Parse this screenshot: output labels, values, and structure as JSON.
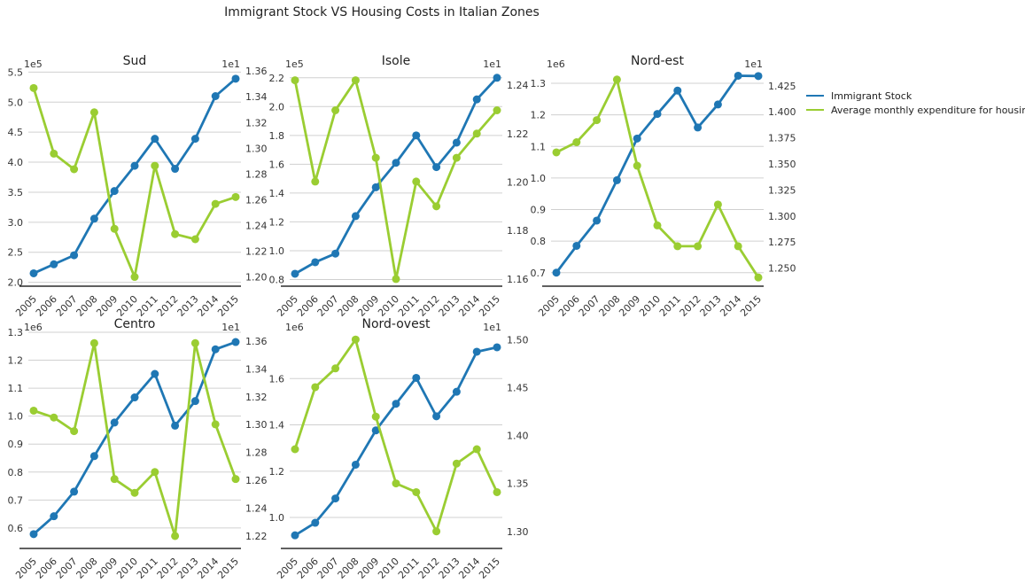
{
  "title": "Immigrant Stock VS Housing Costs in Italian Zones",
  "colors": {
    "immigrant": "#1f77b4",
    "housing": "#9acd32",
    "grid": "#d0d0d0",
    "axis": "#000000"
  },
  "legend": {
    "placement": "right",
    "items": [
      {
        "label": "Immigrant Stock",
        "color": "#1f77b4"
      },
      {
        "label": "Average monthly expenditure for housing",
        "color": "#9acd32"
      }
    ]
  },
  "chart_data": [
    {
      "type": "line",
      "title": "Sud",
      "categories": [
        "2005",
        "2006",
        "2007",
        "2008",
        "2009",
        "2010",
        "2011",
        "2012",
        "2013",
        "2014",
        "2015"
      ],
      "left_multiplier": "1e5",
      "right_multiplier": "1e1",
      "left_ylim": [
        1.95,
        5.55
      ],
      "right_ylim": [
        1.1935,
        1.3615
      ],
      "left_ticks": [
        "2.0",
        "2.5",
        "3.0",
        "3.5",
        "4.0",
        "4.5",
        "5.0",
        "5.5"
      ],
      "right_ticks": [
        "1.20",
        "1.22",
        "1.24",
        "1.26",
        "1.28",
        "1.30",
        "1.32",
        "1.34",
        "1.36"
      ],
      "series": [
        {
          "name": "Immigrant Stock",
          "axis": "left",
          "values": [
            2.15,
            2.3,
            2.45,
            3.06,
            3.52,
            3.94,
            4.39,
            3.89,
            4.39,
            5.1,
            5.39
          ]
        },
        {
          "name": "Average monthly expenditure for housing",
          "axis": "right",
          "values": [
            1.3468,
            1.2958,
            1.2837,
            1.3279,
            1.2374,
            1.2,
            1.2864,
            1.2333,
            1.2293,
            1.2568,
            1.2621
          ]
        }
      ]
    },
    {
      "type": "line",
      "title": "Isole",
      "categories": [
        "2005",
        "2006",
        "2007",
        "2008",
        "2009",
        "2010",
        "2011",
        "2012",
        "2013",
        "2014",
        "2015"
      ],
      "left_multiplier": "1e5",
      "right_multiplier": "1e1",
      "left_ylim": [
        0.76,
        2.26
      ],
      "right_ylim": [
        1.1574,
        1.2466
      ],
      "left_ticks": [
        "0.8",
        "1.0",
        "1.2",
        "1.4",
        "1.6",
        "1.8",
        "2.0",
        "2.2"
      ],
      "right_ticks": [
        "1.16",
        "1.18",
        "1.20",
        "1.22",
        "1.24"
      ],
      "series": [
        {
          "name": "Immigrant Stock",
          "axis": "left",
          "values": [
            0.84,
            0.92,
            0.98,
            1.24,
            1.44,
            1.61,
            1.8,
            1.58,
            1.75,
            2.05,
            2.2
          ]
        },
        {
          "name": "Average monthly expenditure for housing",
          "axis": "right",
          "values": [
            1.242,
            1.2002,
            1.2296,
            1.242,
            1.21,
            1.16,
            1.2002,
            1.19,
            1.21,
            1.22,
            1.2296
          ]
        }
      ]
    },
    {
      "type": "line",
      "title": "Nord-est",
      "categories": [
        "2005",
        "2006",
        "2007",
        "2008",
        "2009",
        "2010",
        "2011",
        "2012",
        "2013",
        "2014",
        "2015"
      ],
      "left_multiplier": "1e6",
      "right_multiplier": "1e1",
      "left_ylim": [
        0.66,
        1.345
      ],
      "right_ylim": [
        1.2335,
        1.441
      ],
      "left_ticks": [
        "0.7",
        "0.8",
        "0.9",
        "1.0",
        "1.1",
        "1.2",
        "1.3"
      ],
      "right_ticks": [
        "1.250",
        "1.275",
        "1.300",
        "1.325",
        "1.350",
        "1.375",
        "1.400",
        "1.425"
      ],
      "series": [
        {
          "name": "Immigrant Stock",
          "axis": "left",
          "values": [
            0.7,
            0.785,
            0.865,
            0.993,
            1.125,
            1.203,
            1.277,
            1.16,
            1.233,
            1.324,
            1.323
          ]
        },
        {
          "name": "Average monthly expenditure for housing",
          "axis": "right",
          "values": [
            1.3611,
            1.3708,
            1.392,
            1.431,
            1.3483,
            1.291,
            1.271,
            1.271,
            1.311,
            1.271,
            1.241
          ]
        }
      ]
    },
    {
      "type": "line",
      "title": "Centro",
      "categories": [
        "2005",
        "2006",
        "2007",
        "2008",
        "2009",
        "2010",
        "2011",
        "2012",
        "2013",
        "2014",
        "2015"
      ],
      "left_multiplier": "1e6",
      "right_multiplier": "1e1",
      "left_ylim": [
        0.53,
        1.3
      ],
      "right_ylim": [
        1.2117,
        1.3663
      ],
      "left_ticks": [
        "0.6",
        "0.7",
        "0.8",
        "0.9",
        "1.0",
        "1.1",
        "1.2",
        "1.3"
      ],
      "right_ticks": [
        "1.22",
        "1.24",
        "1.26",
        "1.28",
        "1.30",
        "1.32",
        "1.34",
        "1.36"
      ],
      "series": [
        {
          "name": "Immigrant Stock",
          "axis": "left",
          "values": [
            0.578,
            0.642,
            0.73,
            0.857,
            0.977,
            1.067,
            1.151,
            0.966,
            1.054,
            1.239,
            1.265
          ]
        },
        {
          "name": "Average monthly expenditure for housing",
          "axis": "right",
          "values": [
            1.31,
            1.3051,
            1.2953,
            1.3585,
            1.2609,
            1.251,
            1.2659,
            1.22,
            1.3585,
            1.3002,
            1.2609
          ]
        }
      ]
    },
    {
      "type": "line",
      "title": "Nord-ovest",
      "categories": [
        "2005",
        "2006",
        "2007",
        "2008",
        "2009",
        "2010",
        "2011",
        "2012",
        "2013",
        "2014",
        "2015"
      ],
      "left_multiplier": "1e6",
      "right_multiplier": "1e1",
      "left_ylim": [
        0.87,
        1.8
      ],
      "right_ylim": [
        1.2832,
        1.5078
      ],
      "left_ticks": [
        "1.0",
        "1.2",
        "1.4",
        "1.6"
      ],
      "right_ticks": [
        "1.30",
        "1.35",
        "1.40",
        "1.45",
        "1.50"
      ],
      "series": [
        {
          "name": "Immigrant Stock",
          "axis": "left",
          "values": [
            0.923,
            0.977,
            1.082,
            1.228,
            1.376,
            1.491,
            1.603,
            1.437,
            1.543,
            1.716,
            1.735
          ]
        },
        {
          "name": "Average monthly expenditure for housing",
          "axis": "right",
          "values": [
            1.3858,
            1.4505,
            1.4701,
            1.5002,
            1.4198,
            1.3501,
            1.341,
            1.3001,
            1.3708,
            1.3858,
            1.341
          ]
        }
      ]
    }
  ]
}
